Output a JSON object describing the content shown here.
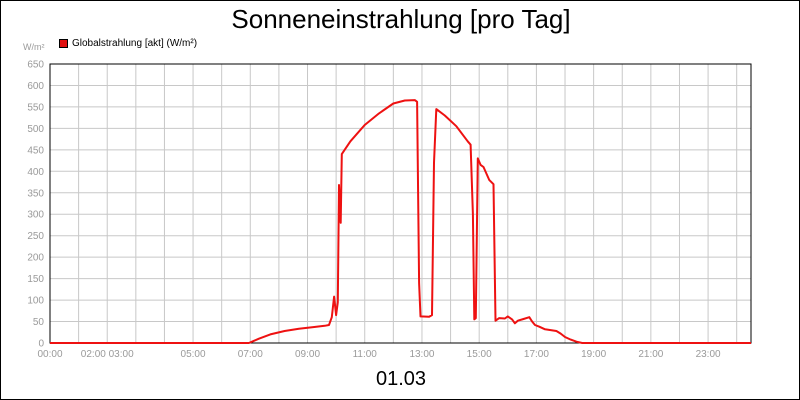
{
  "chart_data": {
    "type": "line",
    "title": "Sonneneinstrahlung [pro Tag]",
    "ylabel": "W/m²",
    "date": "01.03",
    "ylim": [
      0,
      650
    ],
    "xlim_hours": [
      0,
      24.5
    ],
    "grid": true,
    "legend_position": "top-left",
    "y_ticks": [
      0,
      50,
      100,
      150,
      200,
      250,
      300,
      350,
      400,
      450,
      500,
      550,
      600,
      650
    ],
    "x_tick_labels": [
      {
        "hour": 0,
        "label": "00:00"
      },
      {
        "hour": 2,
        "label": "02:00 03:00"
      },
      {
        "hour": 5,
        "label": "05:00"
      },
      {
        "hour": 7,
        "label": "07:00"
      },
      {
        "hour": 9,
        "label": "09:00"
      },
      {
        "hour": 11,
        "label": "11:00"
      },
      {
        "hour": 13,
        "label": "13:00"
      },
      {
        "hour": 15,
        "label": "15:00"
      },
      {
        "hour": 17,
        "label": "17:00"
      },
      {
        "hour": 19,
        "label": "19:00"
      },
      {
        "hour": 21,
        "label": "21:00"
      },
      {
        "hour": 23,
        "label": "23:00"
      }
    ],
    "series": [
      {
        "name": "Globalstrahlung [akt] (W/m²)",
        "color": "#ee1111",
        "points": [
          [
            0.0,
            0
          ],
          [
            6.95,
            0
          ],
          [
            7.3,
            10
          ],
          [
            7.7,
            20
          ],
          [
            8.2,
            28
          ],
          [
            8.7,
            33
          ],
          [
            9.2,
            37
          ],
          [
            9.6,
            40
          ],
          [
            9.75,
            42
          ],
          [
            9.85,
            60
          ],
          [
            9.93,
            108
          ],
          [
            10.0,
            65
          ],
          [
            10.06,
            95
          ],
          [
            10.1,
            368
          ],
          [
            10.16,
            280
          ],
          [
            10.2,
            440
          ],
          [
            10.5,
            470
          ],
          [
            11.0,
            508
          ],
          [
            11.5,
            535
          ],
          [
            12.0,
            558
          ],
          [
            12.4,
            565
          ],
          [
            12.75,
            566
          ],
          [
            12.83,
            562
          ],
          [
            12.9,
            140
          ],
          [
            12.95,
            62
          ],
          [
            13.25,
            61
          ],
          [
            13.35,
            65
          ],
          [
            13.42,
            420
          ],
          [
            13.5,
            545
          ],
          [
            13.8,
            530
          ],
          [
            14.2,
            505
          ],
          [
            14.6,
            470
          ],
          [
            14.7,
            462
          ],
          [
            14.78,
            300
          ],
          [
            14.83,
            55
          ],
          [
            14.88,
            58
          ],
          [
            14.95,
            430
          ],
          [
            15.05,
            415
          ],
          [
            15.15,
            410
          ],
          [
            15.35,
            380
          ],
          [
            15.5,
            370
          ],
          [
            15.57,
            52
          ],
          [
            15.7,
            58
          ],
          [
            15.9,
            57
          ],
          [
            16.0,
            62
          ],
          [
            16.15,
            55
          ],
          [
            16.25,
            46
          ],
          [
            16.35,
            52
          ],
          [
            16.55,
            56
          ],
          [
            16.75,
            60
          ],
          [
            16.85,
            50
          ],
          [
            16.95,
            42
          ],
          [
            17.1,
            38
          ],
          [
            17.3,
            32
          ],
          [
            17.5,
            30
          ],
          [
            17.7,
            28
          ],
          [
            17.85,
            22
          ],
          [
            18.0,
            14
          ],
          [
            18.2,
            8
          ],
          [
            18.4,
            3
          ],
          [
            18.6,
            0
          ],
          [
            24.5,
            0
          ]
        ]
      }
    ]
  }
}
